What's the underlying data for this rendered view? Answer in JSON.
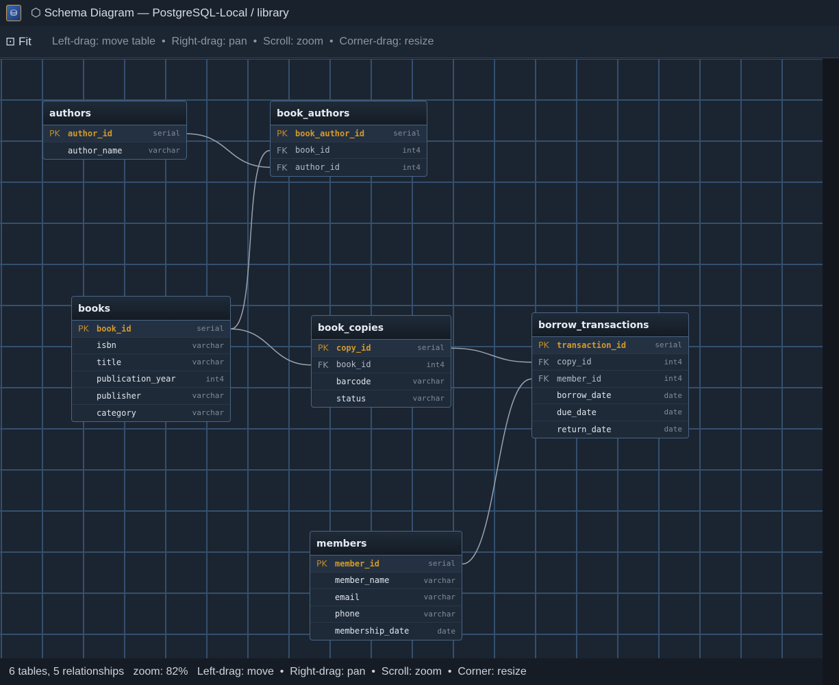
{
  "window": {
    "title": "⬡ Schema Diagram — PostgreSQL-Local / library"
  },
  "toolbar": {
    "fit_label": "⊡ Fit",
    "hint": "Left-drag: move table  •  Right-drag: pan  •  Scroll: zoom  •  Corner-drag: resize"
  },
  "status": {
    "text": "6 tables, 5 relationships   zoom: 82%   Left-drag: move  •  Right-drag: pan  •  Scroll: zoom  •  Corner: resize"
  },
  "colors": {
    "pk": "#d29a2c",
    "link": "#9aa3ad",
    "grid": "#34506e"
  },
  "tables": [
    {
      "name": "authors",
      "columns": [
        {
          "key": "PK",
          "name": "author_id",
          "type": "serial"
        },
        {
          "key": "",
          "name": "author_name",
          "type": "varchar"
        }
      ]
    },
    {
      "name": "book_authors",
      "columns": [
        {
          "key": "PK",
          "name": "book_author_id",
          "type": "serial"
        },
        {
          "key": "FK",
          "name": "book_id",
          "type": "int4"
        },
        {
          "key": "FK",
          "name": "author_id",
          "type": "int4"
        }
      ]
    },
    {
      "name": "books",
      "columns": [
        {
          "key": "PK",
          "name": "book_id",
          "type": "serial"
        },
        {
          "key": "",
          "name": "isbn",
          "type": "varchar"
        },
        {
          "key": "",
          "name": "title",
          "type": "varchar"
        },
        {
          "key": "",
          "name": "publication_year",
          "type": "int4"
        },
        {
          "key": "",
          "name": "publisher",
          "type": "varchar"
        },
        {
          "key": "",
          "name": "category",
          "type": "varchar"
        }
      ]
    },
    {
      "name": "book_copies",
      "columns": [
        {
          "key": "PK",
          "name": "copy_id",
          "type": "serial"
        },
        {
          "key": "FK",
          "name": "book_id",
          "type": "int4"
        },
        {
          "key": "",
          "name": "barcode",
          "type": "varchar"
        },
        {
          "key": "",
          "name": "status",
          "type": "varchar"
        }
      ]
    },
    {
      "name": "borrow_transactions",
      "columns": [
        {
          "key": "PK",
          "name": "transaction_id",
          "type": "serial"
        },
        {
          "key": "FK",
          "name": "copy_id",
          "type": "int4"
        },
        {
          "key": "FK",
          "name": "member_id",
          "type": "int4"
        },
        {
          "key": "",
          "name": "borrow_date",
          "type": "date"
        },
        {
          "key": "",
          "name": "due_date",
          "type": "date"
        },
        {
          "key": "",
          "name": "return_date",
          "type": "date"
        }
      ]
    },
    {
      "name": "members",
      "columns": [
        {
          "key": "PK",
          "name": "member_id",
          "type": "serial"
        },
        {
          "key": "",
          "name": "member_name",
          "type": "varchar"
        },
        {
          "key": "",
          "name": "email",
          "type": "varchar"
        },
        {
          "key": "",
          "name": "phone",
          "type": "varchar"
        },
        {
          "key": "",
          "name": "membership_date",
          "type": "date"
        }
      ]
    }
  ],
  "relationships": [
    {
      "from": "authors.author_id",
      "to": "book_authors.author_id"
    },
    {
      "from": "books.book_id",
      "to": "book_authors.book_id"
    },
    {
      "from": "books.book_id",
      "to": "book_copies.book_id"
    },
    {
      "from": "book_copies.copy_id",
      "to": "borrow_transactions.copy_id"
    },
    {
      "from": "members.member_id",
      "to": "borrow_transactions.member_id"
    }
  ]
}
